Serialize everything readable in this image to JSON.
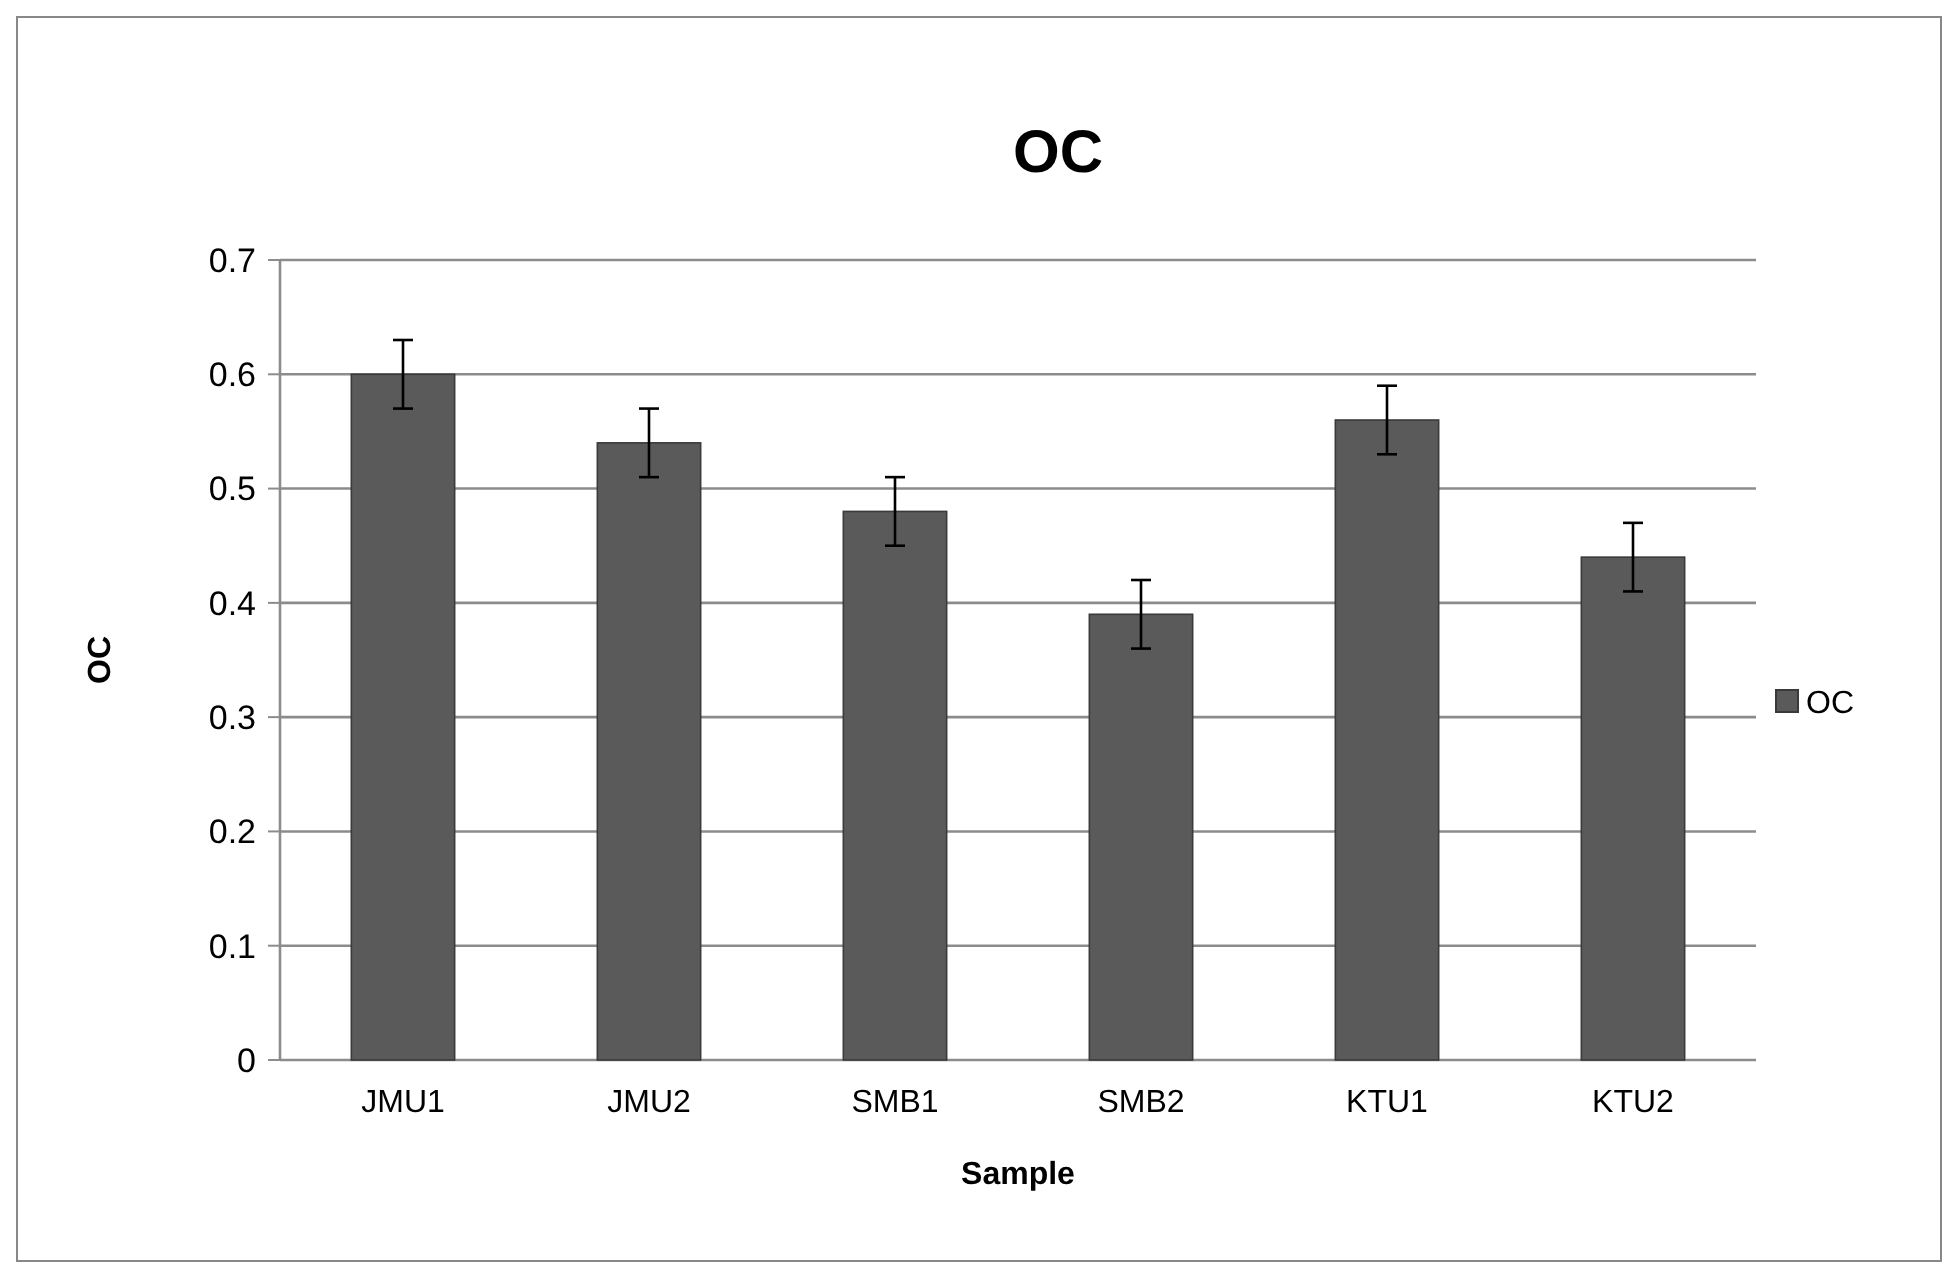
{
  "chart_data": {
    "type": "bar",
    "title": "OC",
    "xlabel": "Sample",
    "ylabel": "OC",
    "categories": [
      "JMU1",
      "JMU2",
      "SMB1",
      "SMB2",
      "KTU1",
      "KTU2"
    ],
    "series": [
      {
        "name": "OC",
        "color": "#5a5a5a",
        "values": [
          0.6,
          0.54,
          0.48,
          0.39,
          0.56,
          0.44
        ],
        "errors": [
          0.03,
          0.03,
          0.03,
          0.03,
          0.03,
          0.03
        ]
      }
    ],
    "ylim": [
      0,
      0.7
    ],
    "yticks": [
      0,
      0.1,
      0.2,
      0.3,
      0.4,
      0.5,
      0.6,
      0.7
    ],
    "grid": "y",
    "legend": "right"
  }
}
